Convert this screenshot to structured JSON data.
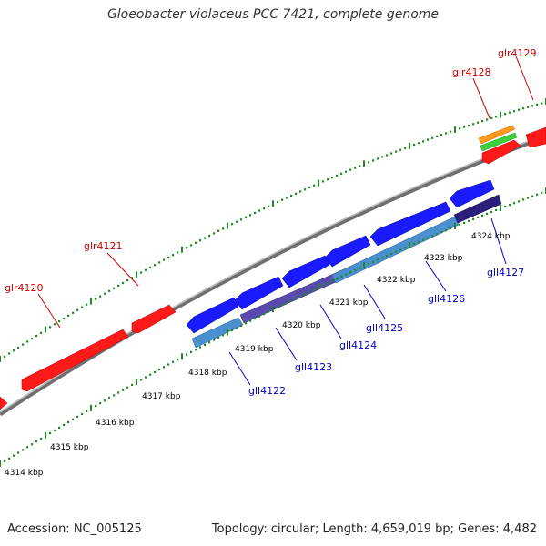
{
  "title": "Gloeobacter violaceus PCC 7421, complete genome",
  "footer": {
    "accession": "Accession: NC_005125",
    "summary": "Topology: circular; Length: 4,659,019 bp; Genes: 4,482"
  },
  "ticks": [
    {
      "label": "4314 kbp"
    },
    {
      "label": "4315 kbp"
    },
    {
      "label": "4316 kbp"
    },
    {
      "label": "4317 kbp"
    },
    {
      "label": "4318 kbp"
    },
    {
      "label": "4319 kbp"
    },
    {
      "label": "4320 kbp"
    },
    {
      "label": "4321 kbp"
    },
    {
      "label": "4322 kbp"
    },
    {
      "label": "4323 kbp"
    },
    {
      "label": "4324 kbp"
    }
  ],
  "genes": {
    "forward": [
      "glr4120",
      "glr4121",
      "glr4128",
      "glr4129"
    ],
    "reverse": [
      "gll4122",
      "gll4123",
      "gll4124",
      "gll4125",
      "gll4126",
      "gll4127"
    ]
  },
  "colors": {
    "forward_gene": "#ff1a1a",
    "reverse_gene": "#1a1aff",
    "backbone": "#8a8a8a",
    "tick": "#1f8a1f",
    "forward_label": "#cc0000",
    "reverse_label": "#0000cc"
  }
}
